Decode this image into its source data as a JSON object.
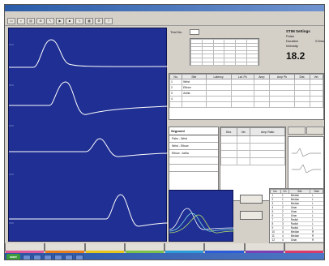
{
  "window": {
    "title": ""
  },
  "menu": [],
  "toolbar_icons": [
    "open-icon",
    "save-icon",
    "print-icon",
    "zoom-icon",
    "cursor-icon",
    "play-icon",
    "stop-icon",
    "graph-icon",
    "table-icon",
    "settings-icon",
    "help-icon"
  ],
  "trial": {
    "label": "Trial No.",
    "value": ""
  },
  "settings": {
    "heading": "STIM Settings",
    "rows": [
      {
        "k": "Pulse",
        "v": ""
      },
      {
        "k": "Duration",
        "v": "0.5ms"
      },
      {
        "k": "Intensity",
        "v": ""
      }
    ],
    "value": "18.2"
  },
  "main_table": {
    "headers": [
      "No.",
      "Site",
      "Latency",
      "Lat. Pk",
      "Amp",
      "Amp Pk",
      "Dist.",
      "Vel."
    ],
    "rows": [
      [
        "1",
        "Wrist",
        "",
        "",
        "",
        "",
        "",
        ""
      ],
      [
        "2",
        "Elbow",
        "",
        "",
        "",
        "",
        "",
        ""
      ],
      [
        "3",
        "Axilla",
        "",
        "",
        "",
        "",
        "",
        ""
      ],
      [
        "4",
        "",
        "",
        "",
        "",
        "",
        "",
        ""
      ]
    ]
  },
  "segments": {
    "heading": "Segment",
    "rows": [
      "Palm - Wrist",
      "Wrist - Elbow",
      "Elbow - Axilla",
      "",
      ""
    ]
  },
  "seg_table": {
    "headers": [
      "Dist.",
      "Vel.",
      "Amp Ratio"
    ],
    "rows": [
      [
        "",
        "",
        ""
      ],
      [
        "",
        "",
        ""
      ],
      [
        "",
        "",
        ""
      ],
      [
        "",
        "",
        ""
      ]
    ]
  },
  "side_tabs": [
    "",
    ""
  ],
  "ctrl_buttons": [
    "",
    ""
  ],
  "list": {
    "headers": [
      "No.",
      "Ch",
      "Site",
      "Side"
    ],
    "rows": [
      [
        "1",
        "1",
        "Median",
        "L"
      ],
      [
        "2",
        "1",
        "Median",
        "L"
      ],
      [
        "3",
        "1",
        "Median",
        "L"
      ],
      [
        "4",
        "2",
        "Ulnar",
        "L"
      ],
      [
        "5",
        "2",
        "Ulnar",
        "L"
      ],
      [
        "6",
        "2",
        "Ulnar",
        "L"
      ],
      [
        "7",
        "3",
        "Radial",
        "L"
      ],
      [
        "8",
        "3",
        "Radial",
        "L"
      ],
      [
        "9",
        "3",
        "Radial",
        "L"
      ],
      [
        "10",
        "4",
        "Median",
        "R"
      ],
      [
        "11",
        "4",
        "Median",
        "R"
      ],
      [
        "12",
        "4",
        "Ulnar",
        "R"
      ]
    ]
  },
  "bottom_tabs": [
    {
      "label": "",
      "color": "#e05a9a"
    },
    {
      "label": "",
      "color": "#e87d1e"
    },
    {
      "label": "",
      "color": "#e6c51d"
    },
    {
      "label": "",
      "color": "#7ac04a"
    },
    {
      "label": "",
      "color": "#2b9ad8"
    },
    {
      "label": "",
      "color": "#2b5bd8"
    },
    {
      "label": "",
      "color": "#7b3fb3"
    },
    {
      "label": "",
      "color": "#d83a6b"
    }
  ],
  "taskbar": {
    "start": "start",
    "tasks": [
      "",
      "",
      "",
      "",
      "",
      ""
    ],
    "clock": ""
  },
  "colors": {
    "trace_bg": "#1f2f93",
    "trace": "#ffffff"
  }
}
